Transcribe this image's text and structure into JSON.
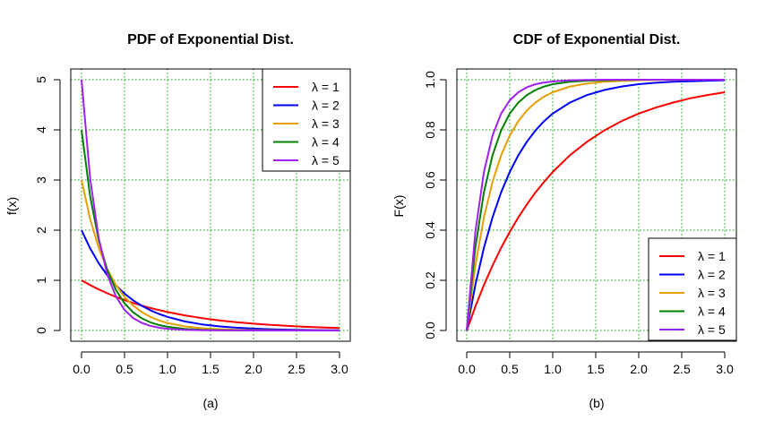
{
  "chart_data": [
    {
      "type": "line",
      "title": "PDF of Exponential Dist.",
      "xlabel": "(a)",
      "ylabel": "f(x)",
      "xlim": [
        0,
        3
      ],
      "ylim": [
        0,
        5
      ],
      "xticks": [
        "0.0",
        "0.5",
        "1.0",
        "1.5",
        "2.0",
        "2.5",
        "3.0"
      ],
      "yticks": [
        "0",
        "1",
        "2",
        "3",
        "4",
        "5"
      ],
      "grid": true,
      "grid_color": "#00a000",
      "legend_position": "top-right",
      "x": [
        0,
        0.1,
        0.2,
        0.3,
        0.4,
        0.5,
        0.6,
        0.7,
        0.8,
        0.9,
        1.0,
        1.2,
        1.4,
        1.6,
        1.8,
        2.0,
        2.2,
        2.4,
        2.6,
        2.8,
        3.0
      ],
      "series": [
        {
          "name": "λ = 1",
          "color": "#ff0000",
          "values": [
            1.0,
            0.905,
            0.819,
            0.741,
            0.67,
            0.607,
            0.549,
            0.497,
            0.449,
            0.407,
            0.368,
            0.301,
            0.247,
            0.202,
            0.165,
            0.135,
            0.111,
            0.091,
            0.074,
            0.061,
            0.05
          ]
        },
        {
          "name": "λ = 2",
          "color": "#0000ff",
          "values": [
            2.0,
            1.637,
            1.341,
            1.098,
            0.899,
            0.736,
            0.602,
            0.493,
            0.404,
            0.331,
            0.271,
            0.181,
            0.122,
            0.082,
            0.055,
            0.037,
            0.025,
            0.016,
            0.011,
            0.007,
            0.005
          ]
        },
        {
          "name": "λ = 3",
          "color": "#e69f00",
          "values": [
            3.0,
            2.222,
            1.646,
            1.22,
            0.904,
            0.669,
            0.496,
            0.367,
            0.272,
            0.202,
            0.149,
            0.082,
            0.045,
            0.025,
            0.014,
            0.007,
            0.004,
            0.002,
            0.001,
            0.001,
            0.0
          ]
        },
        {
          "name": "λ = 4",
          "color": "#008000",
          "values": [
            4.0,
            2.681,
            1.797,
            1.205,
            0.808,
            0.541,
            0.363,
            0.243,
            0.163,
            0.109,
            0.073,
            0.033,
            0.015,
            0.007,
            0.003,
            0.001,
            0.001,
            0.0,
            0.0,
            0.0,
            0.0
          ]
        },
        {
          "name": "λ = 5",
          "color": "#a020f0",
          "values": [
            5.0,
            3.033,
            1.839,
            1.116,
            0.677,
            0.41,
            0.249,
            0.151,
            0.092,
            0.056,
            0.034,
            0.012,
            0.005,
            0.002,
            0.001,
            0.0,
            0.0,
            0.0,
            0.0,
            0.0,
            0.0
          ]
        }
      ]
    },
    {
      "type": "line",
      "title": "CDF of Exponential Dist.",
      "xlabel": "(b)",
      "ylabel": "F(x)",
      "xlim": [
        0,
        3
      ],
      "ylim": [
        0,
        1
      ],
      "xticks": [
        "0.0",
        "0.5",
        "1.0",
        "1.5",
        "2.0",
        "2.5",
        "3.0"
      ],
      "yticks": [
        "0.0",
        "0.2",
        "0.4",
        "0.6",
        "0.8",
        "1.0"
      ],
      "grid": true,
      "grid_color": "#00a000",
      "legend_position": "bottom-right",
      "x": [
        0,
        0.1,
        0.2,
        0.3,
        0.4,
        0.5,
        0.6,
        0.7,
        0.8,
        0.9,
        1.0,
        1.2,
        1.4,
        1.6,
        1.8,
        2.0,
        2.2,
        2.4,
        2.6,
        2.8,
        3.0
      ],
      "series": [
        {
          "name": "λ = 1",
          "color": "#ff0000",
          "values": [
            0.0,
            0.095,
            0.181,
            0.259,
            0.33,
            0.393,
            0.451,
            0.503,
            0.551,
            0.593,
            0.632,
            0.699,
            0.753,
            0.798,
            0.835,
            0.865,
            0.889,
            0.909,
            0.926,
            0.939,
            0.95
          ]
        },
        {
          "name": "λ = 2",
          "color": "#0000ff",
          "values": [
            0.0,
            0.181,
            0.33,
            0.451,
            0.551,
            0.632,
            0.699,
            0.753,
            0.798,
            0.835,
            0.865,
            0.909,
            0.939,
            0.959,
            0.973,
            0.982,
            0.988,
            0.992,
            0.994,
            0.996,
            0.998
          ]
        },
        {
          "name": "λ = 3",
          "color": "#e69f00",
          "values": [
            0.0,
            0.259,
            0.451,
            0.593,
            0.699,
            0.777,
            0.835,
            0.878,
            0.909,
            0.933,
            0.95,
            0.973,
            0.985,
            0.992,
            0.995,
            0.998,
            0.999,
            0.999,
            1.0,
            1.0,
            1.0
          ]
        },
        {
          "name": "λ = 4",
          "color": "#008000",
          "values": [
            0.0,
            0.33,
            0.551,
            0.699,
            0.798,
            0.865,
            0.909,
            0.939,
            0.959,
            0.973,
            0.982,
            0.992,
            0.996,
            0.998,
            0.999,
            1.0,
            1.0,
            1.0,
            1.0,
            1.0,
            1.0
          ]
        },
        {
          "name": "λ = 5",
          "color": "#a020f0",
          "values": [
            0.0,
            0.393,
            0.632,
            0.777,
            0.865,
            0.918,
            0.95,
            0.97,
            0.982,
            0.989,
            0.993,
            0.998,
            0.999,
            1.0,
            1.0,
            1.0,
            1.0,
            1.0,
            1.0,
            1.0,
            1.0
          ]
        }
      ]
    }
  ]
}
